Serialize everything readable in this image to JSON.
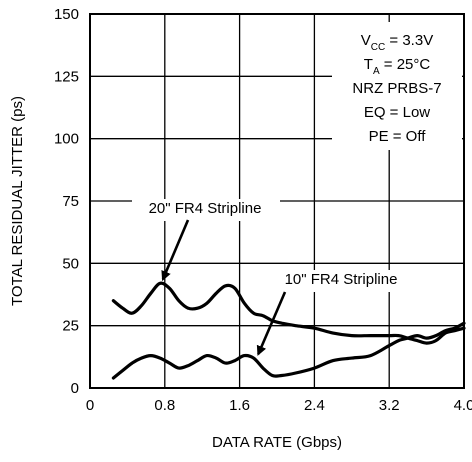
{
  "chart_data": {
    "type": "line",
    "xlabel": "DATA RATE (Gbps)",
    "ylabel": "TOTAL RESIDUAL JITTER (ps)",
    "xlim": [
      0,
      4.0
    ],
    "ylim": [
      0,
      150
    ],
    "x_ticks": [
      0,
      0.8,
      1.6,
      2.4,
      3.2,
      4.0
    ],
    "x_tick_labels": [
      "0",
      "0.8",
      "1.6",
      "2.4",
      "3.2",
      "4.0"
    ],
    "y_ticks": [
      0,
      25,
      50,
      75,
      100,
      125,
      150
    ],
    "y_tick_labels": [
      "0",
      "25",
      "50",
      "75",
      "100",
      "125",
      "150"
    ],
    "grid": true,
    "conditions": {
      "vcc_prefix": "V",
      "vcc_sub": "CC",
      "vcc_value": " = 3.3V",
      "ta_prefix": "T",
      "ta_sub": "A",
      "ta_value": " = 25°C",
      "pattern": "NRZ PRBS-7",
      "eq": "EQ = Low",
      "pe": "PE = Off"
    },
    "series": [
      {
        "name": "20\" FR4 Stripline",
        "x": [
          0.25,
          0.35,
          0.45,
          0.55,
          0.65,
          0.75,
          0.85,
          0.95,
          1.05,
          1.15,
          1.25,
          1.35,
          1.45,
          1.55,
          1.65,
          1.75,
          1.85,
          1.95,
          2.05,
          2.2,
          2.4,
          2.6,
          2.8,
          3.0,
          3.2,
          3.3,
          3.4,
          3.5,
          3.6,
          3.7,
          3.8,
          3.9,
          4.0
        ],
        "y": [
          35,
          32,
          30,
          33,
          38,
          42,
          40,
          35,
          32,
          32,
          34,
          38,
          41,
          40,
          34,
          30,
          29,
          27,
          26,
          25,
          24,
          22,
          21,
          21,
          21,
          21,
          20,
          19,
          18,
          19,
          22,
          23,
          24
        ]
      },
      {
        "name": "10\" FR4 Stripline",
        "x": [
          0.25,
          0.35,
          0.45,
          0.55,
          0.65,
          0.75,
          0.85,
          0.95,
          1.05,
          1.15,
          1.25,
          1.35,
          1.45,
          1.55,
          1.65,
          1.75,
          1.85,
          1.95,
          2.05,
          2.2,
          2.4,
          2.6,
          2.8,
          3.0,
          3.2,
          3.3,
          3.4,
          3.5,
          3.6,
          3.7,
          3.8,
          3.9,
          4.0
        ],
        "y": [
          4,
          7,
          10,
          12,
          13,
          12,
          10,
          8,
          9,
          11,
          13,
          12,
          10,
          11,
          13,
          12,
          8,
          5,
          5,
          6,
          8,
          11,
          12,
          13,
          17,
          19,
          20,
          21,
          20,
          21,
          23,
          24,
          26
        ]
      }
    ],
    "annotations": [
      {
        "text": "20\" FR4 Stripline",
        "series": 0,
        "point": [
          0.78,
          42
        ]
      },
      {
        "text": "10\" FR4 Stripline",
        "series": 1,
        "point": [
          1.8,
          12
        ]
      }
    ]
  }
}
